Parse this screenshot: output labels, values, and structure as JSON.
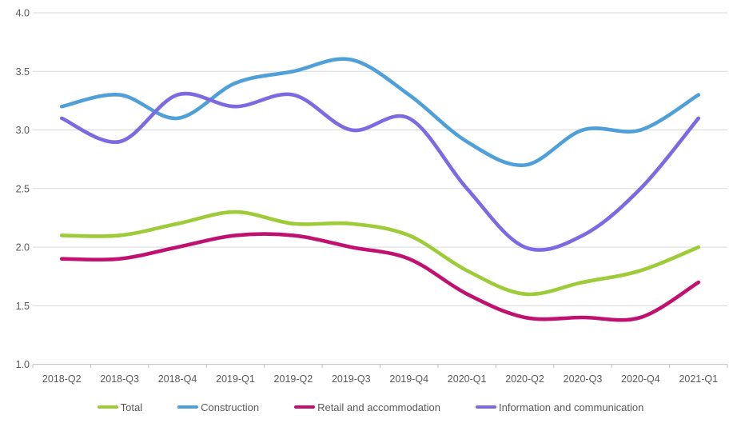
{
  "chart_data": {
    "type": "line",
    "title": "",
    "categories": [
      "2018-Q2",
      "2018-Q3",
      "2018-Q4",
      "2019-Q1",
      "2019-Q2",
      "2019-Q3",
      "2019-Q4",
      "2020-Q1",
      "2020-Q2",
      "2020-Q3",
      "2020-Q4",
      "2021-Q1"
    ],
    "series": [
      {
        "name": "Total",
        "color": "#9ECB38",
        "values": [
          2.1,
          2.1,
          2.2,
          2.3,
          2.2,
          2.2,
          2.1,
          1.8,
          1.6,
          1.7,
          1.8,
          2.0
        ]
      },
      {
        "name": "Construction",
        "color": "#4FA0D8",
        "values": [
          3.2,
          3.3,
          3.1,
          3.4,
          3.5,
          3.6,
          3.3,
          2.9,
          2.7,
          3.0,
          3.0,
          3.3
        ]
      },
      {
        "name": "Retail and accommodation",
        "color": "#C01070",
        "values": [
          1.9,
          1.9,
          2.0,
          2.1,
          2.1,
          2.0,
          1.9,
          1.6,
          1.4,
          1.4,
          1.4,
          1.7
        ]
      },
      {
        "name": "Information and communication",
        "color": "#7C6AE2",
        "values": [
          3.1,
          2.9,
          3.3,
          3.2,
          3.3,
          3.0,
          3.1,
          2.5,
          2.0,
          2.1,
          2.5,
          3.1
        ]
      }
    ],
    "y_axis": {
      "min": 1.0,
      "max": 4.0,
      "step": 0.5,
      "tick_labels": [
        "4.0",
        "3.5",
        "3.0",
        "2.5",
        "2.0",
        "1.5",
        "1.0"
      ]
    },
    "xlabel": "",
    "ylabel": "",
    "grid": true,
    "legend_position": "bottom",
    "line_smoothing": true
  },
  "styles": {
    "grid_color": "#D9D9D9",
    "axis_color": "#BFBFBF",
    "tick_label_color": "#595959",
    "legend_label_color": "#595959",
    "background": "#ffffff"
  }
}
